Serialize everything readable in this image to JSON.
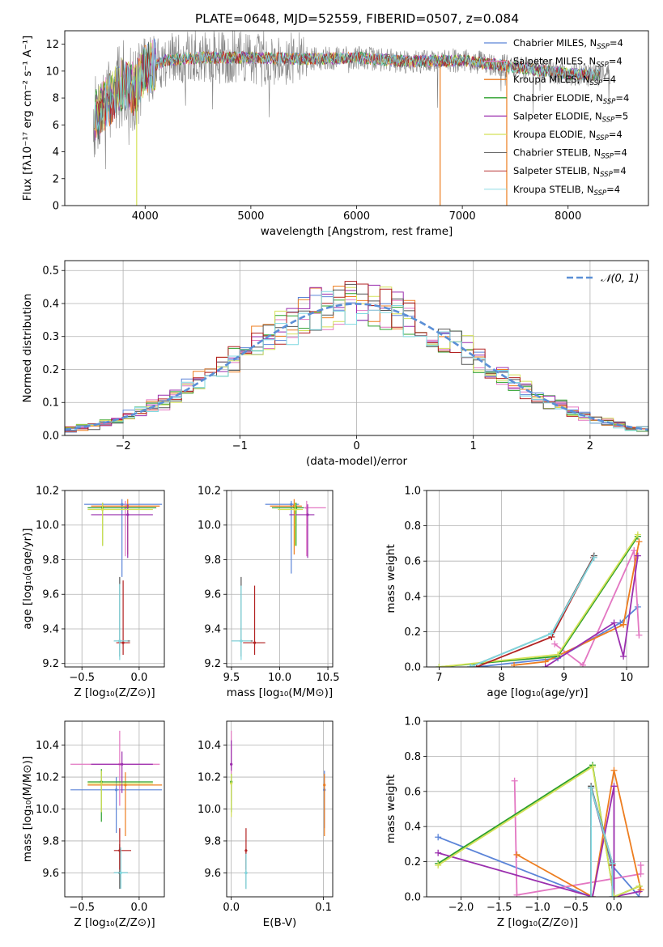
{
  "figure": {
    "title": "PLATE=0648, MJD=52559, FIBERID=0507, z=0.084"
  },
  "colors": {
    "Chabrier MILES": "#5b84d8",
    "Salpeter MILES": "#e377c2",
    "Kroupa MILES": "#ed7d1f",
    "Chabrier ELODIE": "#2ca02c",
    "Salpeter ELODIE": "#9b2fae",
    "Kroupa ELODIE": "#d4e157",
    "Chabrier STELIB": "#555555",
    "Salpeter STELIB": "#b22222",
    "Kroupa STELIB": "#7fd8e0",
    "normal": "#5b8fd6"
  },
  "chart_data": [
    {
      "id": "spectrum",
      "type": "line",
      "xlabel": "wavelength [Angstrom, rest frame]",
      "ylabel": "Flux [fλ10⁻¹⁷ erg cm⁻² s⁻¹ A⁻¹]",
      "xlim": [
        3240,
        8760
      ],
      "ylim": [
        0,
        13
      ],
      "xticks": [
        4000,
        5000,
        6000,
        7000,
        8000
      ],
      "yticks": [
        0,
        2,
        4,
        6,
        8,
        10,
        12
      ],
      "grid": false,
      "legend": "right",
      "legend_entries": [
        {
          "base": "Chabrier MILES, N",
          "sub": "SSP",
          "tail": "=4"
        },
        {
          "base": "Salpeter MILES, N",
          "sub": "SSP",
          "tail": "=4"
        },
        {
          "base": "Kroupa MILES, N",
          "sub": "SSP",
          "tail": "=4"
        },
        {
          "base": "Chabrier ELODIE, N",
          "sub": "SSP",
          "tail": "=4"
        },
        {
          "base": "Salpeter ELODIE, N",
          "sub": "SSP",
          "tail": "=5"
        },
        {
          "base": "Kroupa ELODIE, N",
          "sub": "SSP",
          "tail": "=4"
        },
        {
          "base": "Chabrier STELIB, N",
          "sub": "SSP",
          "tail": "=4"
        },
        {
          "base": "Salpeter STELIB, N",
          "sub": "SSP",
          "tail": "=4"
        },
        {
          "base": "Kroupa STELIB, N",
          "sub": "SSP",
          "tail": "=4"
        }
      ],
      "continuum": {
        "x": [
          3500,
          3600,
          3700,
          3800,
          3900,
          4000,
          4200,
          4500,
          5000,
          5500,
          6000,
          6500,
          7000,
          7300,
          7600,
          8000,
          8400
        ],
        "y": [
          6.3,
          7.3,
          8.2,
          9.2,
          8.6,
          10.2,
          10.8,
          11.0,
          11.0,
          10.9,
          11.0,
          10.7,
          10.8,
          10.5,
          10.2,
          9.8,
          9.7
        ]
      }
    },
    {
      "id": "residuals",
      "type": "line",
      "xlabel": "(data-model)/error",
      "ylabel": "Normed distribution",
      "xlim": [
        -2.5,
        2.5
      ],
      "ylim": [
        0,
        0.53
      ],
      "xticks": [
        -2,
        -1,
        0,
        1,
        2
      ],
      "yticks": [
        0.0,
        0.1,
        0.2,
        0.3,
        0.4,
        0.5
      ],
      "grid": true,
      "legend": "top-right",
      "legend_label": "𝒩(0, 1)"
    },
    {
      "id": "age_vs_z",
      "type": "scatter",
      "xlabel": "Z [log₁₀(Z/Z⊙)]",
      "ylabel": "age  [log₁₀(age/yr)]",
      "xlim": [
        -0.65,
        0.22
      ],
      "ylim": [
        9.18,
        10.2
      ],
      "xticks": [
        -0.5,
        0.0
      ],
      "yticks": [
        9.2,
        9.4,
        9.6,
        9.8,
        10.0,
        10.2
      ],
      "points": [
        {
          "m": "Chabrier MILES",
          "x": -0.15,
          "y": 10.12,
          "xe": [
            -0.48,
            0.2
          ],
          "ye": [
            9.7,
            10.15
          ]
        },
        {
          "m": "Salpeter MILES",
          "x": -0.12,
          "y": 10.1,
          "xe": [
            -0.44,
            0.15
          ],
          "ye": [
            9.82,
            10.14
          ]
        },
        {
          "m": "Kroupa MILES",
          "x": -0.1,
          "y": 10.11,
          "xe": [
            -0.42,
            0.18
          ],
          "ye": [
            9.83,
            10.15
          ]
        },
        {
          "m": "Chabrier ELODIE",
          "x": -0.32,
          "y": 10.1,
          "xe": [
            -0.45,
            0.15
          ],
          "ye": [
            9.88,
            10.13
          ]
        },
        {
          "m": "Salpeter ELODIE",
          "x": -0.1,
          "y": 10.06,
          "xe": [
            -0.42,
            0.12
          ],
          "ye": [
            9.81,
            10.12
          ]
        },
        {
          "m": "Kroupa ELODIE",
          "x": -0.32,
          "y": 10.09,
          "xe": [
            -0.45,
            0.12
          ],
          "ye": [
            9.88,
            10.13
          ]
        },
        {
          "m": "Chabrier STELIB",
          "x": -0.17,
          "y": 9.33,
          "xe": [
            -0.22,
            -0.08
          ],
          "ye": [
            9.24,
            9.7
          ]
        },
        {
          "m": "Salpeter STELIB",
          "x": -0.14,
          "y": 9.32,
          "xe": [
            -0.2,
            -0.08
          ],
          "ye": [
            9.25,
            9.68
          ]
        },
        {
          "m": "Kroupa STELIB",
          "x": -0.17,
          "y": 9.33,
          "xe": [
            -0.22,
            -0.1
          ],
          "ye": [
            9.22,
            9.66
          ]
        }
      ]
    },
    {
      "id": "age_vs_mass",
      "type": "scatter",
      "xlabel": "mass [log₁₀(M/M⊙)]",
      "ylabel": "",
      "xlim": [
        9.45,
        10.55
      ],
      "ylim": [
        9.18,
        10.2
      ],
      "xticks": [
        9.5,
        10.0,
        10.5
      ],
      "yticks": [
        9.2,
        9.4,
        9.6,
        9.8,
        10.0,
        10.2
      ],
      "points": [
        {
          "m": "Chabrier MILES",
          "x": 10.12,
          "y": 10.12,
          "xe": [
            9.85,
            10.2
          ],
          "ye": [
            9.72,
            10.14
          ]
        },
        {
          "m": "Salpeter MILES",
          "x": 10.28,
          "y": 10.1,
          "xe": [
            9.95,
            10.48
          ],
          "ye": [
            9.82,
            10.14
          ]
        },
        {
          "m": "Kroupa MILES",
          "x": 10.15,
          "y": 10.11,
          "xe": [
            9.9,
            10.23
          ],
          "ye": [
            9.83,
            10.15
          ]
        },
        {
          "m": "Chabrier ELODIE",
          "x": 10.17,
          "y": 10.1,
          "xe": [
            9.92,
            10.25
          ],
          "ye": [
            9.88,
            10.13
          ]
        },
        {
          "m": "Salpeter ELODIE",
          "x": 10.29,
          "y": 10.06,
          "xe": [
            10.1,
            10.36
          ],
          "ye": [
            9.81,
            10.12
          ]
        },
        {
          "m": "Kroupa ELODIE",
          "x": 10.16,
          "y": 10.09,
          "xe": [
            9.98,
            10.24
          ],
          "ye": [
            9.88,
            10.13
          ]
        },
        {
          "m": "Chabrier STELIB",
          "x": 9.6,
          "y": 9.33,
          "xe": [
            9.5,
            9.72
          ],
          "ye": [
            9.24,
            9.7
          ]
        },
        {
          "m": "Salpeter STELIB",
          "x": 9.74,
          "y": 9.32,
          "xe": [
            9.62,
            9.85
          ],
          "ye": [
            9.25,
            9.65
          ]
        },
        {
          "m": "Kroupa STELIB",
          "x": 9.6,
          "y": 9.33,
          "xe": [
            9.5,
            9.7
          ],
          "ye": [
            9.22,
            9.65
          ]
        }
      ]
    },
    {
      "id": "weight_vs_age",
      "type": "line",
      "xlabel": "age  [log₁₀(age/yr)]",
      "ylabel": "mass weight",
      "xlim": [
        6.8,
        10.35
      ],
      "ylim": [
        0,
        1.0
      ],
      "xticks": [
        7,
        8,
        9,
        10
      ],
      "yticks": [
        0.0,
        0.2,
        0.4,
        0.6,
        0.8,
        1.0
      ],
      "series": [
        {
          "m": "Chabrier MILES",
          "x": [
            7.6,
            8.9,
            9.9,
            10.18
          ],
          "y": [
            0.0,
            0.05,
            0.25,
            0.34
          ]
        },
        {
          "m": "Salpeter MILES",
          "x": [
            8.85,
            9.3,
            10.12,
            10.2
          ],
          "y": [
            0.13,
            0.01,
            0.66,
            0.18
          ]
        },
        {
          "m": "Kroupa MILES",
          "x": [
            8.2,
            8.7,
            9.95,
            10.2
          ],
          "y": [
            0.01,
            0.03,
            0.24,
            0.71
          ]
        },
        {
          "m": "Chabrier ELODIE",
          "x": [
            7.0,
            8.9,
            10.18
          ],
          "y": [
            0.0,
            0.06,
            0.74
          ]
        },
        {
          "m": "Salpeter ELODIE",
          "x": [
            8.7,
            9.8,
            9.95,
            10.18
          ],
          "y": [
            0.0,
            0.25,
            0.06,
            0.63
          ]
        },
        {
          "m": "Kroupa ELODIE",
          "x": [
            7.0,
            8.9,
            10.18
          ],
          "y": [
            0.0,
            0.07,
            0.75
          ]
        },
        {
          "m": "Chabrier STELIB",
          "x": [
            7.5,
            8.8,
            9.48
          ],
          "y": [
            0.0,
            0.19,
            0.63
          ]
        },
        {
          "m": "Salpeter STELIB",
          "x": [
            7.6,
            8.8,
            9.47
          ],
          "y": [
            0.0,
            0.17,
            0.62
          ]
        },
        {
          "m": "Kroupa STELIB",
          "x": [
            7.5,
            8.8,
            9.48
          ],
          "y": [
            0.0,
            0.19,
            0.62
          ]
        }
      ]
    },
    {
      "id": "mass_vs_z",
      "type": "scatter",
      "xlabel": "Z [log₁₀(Z/Z⊙)]",
      "ylabel": "mass [log₁₀(M/M⊙)]",
      "xlim": [
        -0.65,
        0.22
      ],
      "ylim": [
        9.45,
        10.55
      ],
      "xticks": [
        -0.5,
        0.0
      ],
      "yticks": [
        9.6,
        9.8,
        10.0,
        10.2,
        10.4
      ],
      "points": [
        {
          "m": "Chabrier MILES",
          "x": -0.2,
          "y": 10.12,
          "xe": [
            -0.6,
            0.2
          ],
          "ye": [
            9.85,
            10.2
          ]
        },
        {
          "m": "Salpeter MILES",
          "x": -0.17,
          "y": 10.28,
          "xe": [
            -0.6,
            0.18
          ],
          "ye": [
            10.02,
            10.49
          ]
        },
        {
          "m": "Kroupa MILES",
          "x": -0.12,
          "y": 10.15,
          "xe": [
            -0.45,
            0.2
          ],
          "ye": [
            9.83,
            10.23
          ]
        },
        {
          "m": "Chabrier ELODIE",
          "x": -0.33,
          "y": 10.17,
          "xe": [
            -0.45,
            0.12
          ],
          "ye": [
            9.92,
            10.25
          ]
        },
        {
          "m": "Salpeter ELODIE",
          "x": -0.15,
          "y": 10.28,
          "xe": [
            -0.42,
            0.12
          ],
          "ye": [
            10.1,
            10.36
          ]
        },
        {
          "m": "Kroupa ELODIE",
          "x": -0.33,
          "y": 10.16,
          "xe": [
            -0.45,
            0.12
          ],
          "ye": [
            9.98,
            10.24
          ]
        },
        {
          "m": "Chabrier STELIB",
          "x": -0.17,
          "y": 9.6,
          "xe": [
            -0.22,
            -0.1
          ],
          "ye": [
            9.5,
            9.78
          ]
        },
        {
          "m": "Salpeter STELIB",
          "x": -0.17,
          "y": 9.74,
          "xe": [
            -0.22,
            -0.07
          ],
          "ye": [
            9.62,
            9.88
          ]
        },
        {
          "m": "Kroupa STELIB",
          "x": -0.16,
          "y": 9.6,
          "xe": [
            -0.22,
            -0.1
          ],
          "ye": [
            9.5,
            9.76
          ]
        }
      ]
    },
    {
      "id": "mass_vs_ebv",
      "type": "scatter",
      "xlabel": "E(B-V)",
      "ylabel": "",
      "xlim": [
        -0.005,
        0.11
      ],
      "ylim": [
        9.45,
        10.55
      ],
      "xticks": [
        0.0,
        0.1
      ],
      "yticks": [
        9.6,
        9.8,
        10.0,
        10.2,
        10.4
      ],
      "points": [
        {
          "m": "Chabrier MILES",
          "x": 0.101,
          "y": 10.12,
          "ye": [
            9.88,
            10.24
          ]
        },
        {
          "m": "Salpeter MILES",
          "x": 0.0,
          "y": 10.28,
          "ye": [
            10.05,
            10.49
          ]
        },
        {
          "m": "Kroupa MILES",
          "x": 0.101,
          "y": 10.15,
          "ye": [
            9.83,
            10.22
          ]
        },
        {
          "m": "Chabrier ELODIE",
          "x": 0.0,
          "y": 10.17,
          "ye": [
            9.98,
            10.22
          ]
        },
        {
          "m": "Salpeter ELODIE",
          "x": 0.0,
          "y": 10.28,
          "ye": [
            10.24,
            10.43
          ]
        },
        {
          "m": "Kroupa ELODIE",
          "x": 0.0,
          "y": 10.16,
          "ye": [
            9.95,
            10.22
          ]
        },
        {
          "m": "Chabrier STELIB",
          "x": 0.016,
          "y": 9.6,
          "ye": [
            9.5,
            9.75
          ]
        },
        {
          "m": "Salpeter STELIB",
          "x": 0.016,
          "y": 9.74,
          "ye": [
            9.62,
            9.88
          ]
        },
        {
          "m": "Kroupa STELIB",
          "x": 0.016,
          "y": 9.6,
          "ye": [
            9.5,
            9.72
          ]
        }
      ]
    },
    {
      "id": "weight_vs_z",
      "type": "line",
      "xlabel": "Z [log₁₀(Z/Z⊙)]",
      "ylabel": "mass weight",
      "xlim": [
        -2.45,
        0.45
      ],
      "ylim": [
        0,
        1.0
      ],
      "xticks": [
        -2.0,
        -1.5,
        -1.0,
        -0.5,
        0.0
      ],
      "yticks": [
        0.0,
        0.2,
        0.4,
        0.6,
        0.8,
        1.0
      ],
      "series": [
        {
          "m": "Chabrier MILES",
          "x": [
            -2.3,
            -0.3,
            -0.3,
            -0.03,
            0.33
          ],
          "y": [
            0.34,
            0.0,
            0.62,
            0.18,
            0.0
          ]
        },
        {
          "m": "Salpeter MILES",
          "x": [
            -1.3,
            -1.27,
            0.35,
            0.35
          ],
          "y": [
            0.66,
            0.01,
            0.13,
            0.18
          ]
        },
        {
          "m": "Kroupa MILES",
          "x": [
            -1.27,
            -0.28,
            0.0,
            0.35
          ],
          "y": [
            0.24,
            0.0,
            0.72,
            0.04
          ]
        },
        {
          "m": "Chabrier ELODIE",
          "x": [
            -2.3,
            -0.28,
            0.0,
            0.33
          ],
          "y": [
            0.19,
            0.75,
            0.0,
            0.06
          ]
        },
        {
          "m": "Salpeter ELODIE",
          "x": [
            -2.3,
            -0.28,
            0.0,
            0.0,
            0.33
          ],
          "y": [
            0.25,
            0.0,
            0.63,
            0.0,
            0.03
          ]
        },
        {
          "m": "Kroupa ELODIE",
          "x": [
            -2.3,
            -0.28,
            0.0,
            0.33
          ],
          "y": [
            0.18,
            0.74,
            0.0,
            0.06
          ]
        },
        {
          "m": "Chabrier STELIB",
          "x": [
            -0.3,
            -0.3,
            -0.02,
            -0.02
          ],
          "y": [
            0.0,
            0.63,
            0.19,
            0.0
          ]
        },
        {
          "m": "Salpeter STELIB",
          "x": [
            -0.3,
            -0.3,
            -0.02,
            -0.02
          ],
          "y": [
            0.0,
            0.62,
            0.18,
            0.0
          ]
        },
        {
          "m": "Kroupa STELIB",
          "x": [
            -0.3,
            -0.3,
            -0.02,
            -0.02
          ],
          "y": [
            0.0,
            0.62,
            0.19,
            0.0
          ]
        }
      ]
    }
  ]
}
